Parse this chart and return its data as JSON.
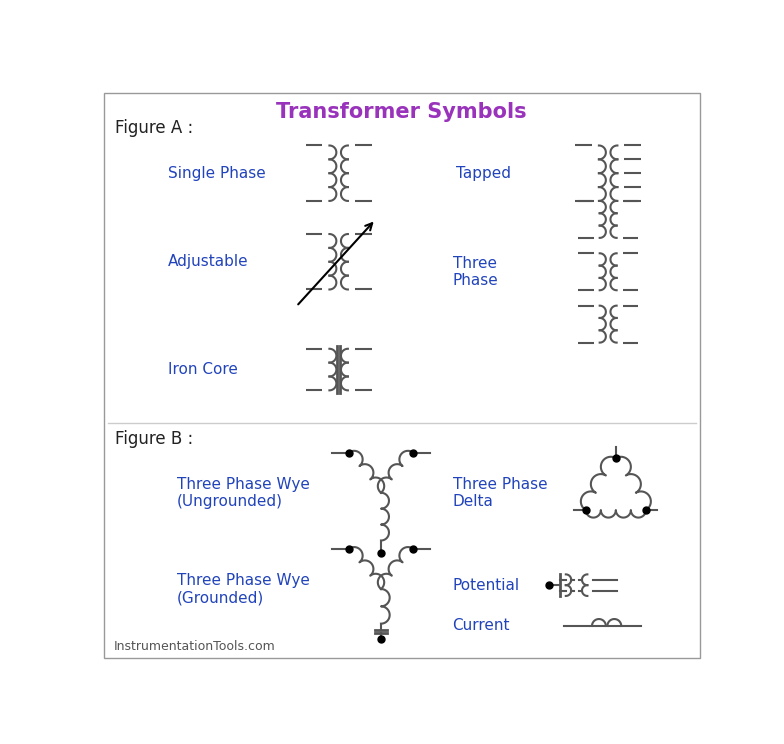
{
  "title": "Transformer Symbols",
  "title_color": "#9933BB",
  "fig_a_label": "Figure A :",
  "fig_b_label": "Figure B :",
  "footer": "InstrumentationTools.com",
  "bg_color": "#FFFFFF",
  "line_color": "#555555",
  "blue_color": "#2244BB",
  "dark_color": "#222222",
  "labels": {
    "single_phase": "Single Phase",
    "tapped": "Tapped",
    "adjustable": "Adjustable",
    "three_phase": "Three\nPhase",
    "iron_core": "Iron Core",
    "wye_ug": "Three Phase Wye\n(Ungrounded)",
    "delta": "Three Phase\nDelta",
    "wye_g": "Three Phase Wye\n(Grounded)",
    "potential": "Potential",
    "current": "Current"
  }
}
